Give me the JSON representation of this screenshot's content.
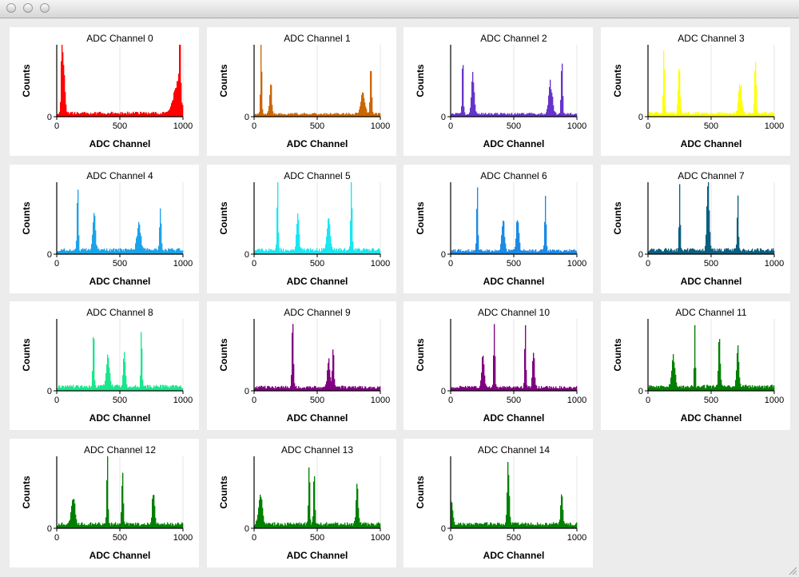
{
  "window": {},
  "axes": {
    "xlabel": "ADC Channel",
    "ylabel": "Counts",
    "xticks": [
      "0",
      "500",
      "1000"
    ],
    "ytick": "0",
    "xlim": [
      0,
      1000
    ]
  },
  "chart_data": [
    {
      "type": "area",
      "title": "ADC Channel 0",
      "color": "#ff0000",
      "xlabel": "ADC Channel",
      "ylabel": "Counts",
      "xlim": [
        0,
        1000
      ],
      "baseline": 0.05,
      "peaks": [
        {
          "x": 40,
          "h": 0.95,
          "w": 6
        },
        {
          "x": 55,
          "h": 0.55,
          "w": 10
        },
        {
          "x": 950,
          "h": 0.4,
          "w": 28
        },
        {
          "x": 975,
          "h": 0.85,
          "w": 6
        }
      ]
    },
    {
      "type": "area",
      "title": "ADC Channel 1",
      "color": "#cc6600",
      "xlabel": "ADC Channel",
      "ylabel": "Counts",
      "xlim": [
        0,
        1000
      ],
      "baseline": 0.04,
      "peaks": [
        {
          "x": 55,
          "h": 0.92,
          "w": 5
        },
        {
          "x": 130,
          "h": 0.45,
          "w": 8
        },
        {
          "x": 860,
          "h": 0.28,
          "w": 16
        },
        {
          "x": 925,
          "h": 0.72,
          "w": 6
        }
      ]
    },
    {
      "type": "area",
      "title": "ADC Channel 2",
      "color": "#6633cc",
      "xlabel": "ADC Channel",
      "ylabel": "Counts",
      "xlim": [
        0,
        1000
      ],
      "baseline": 0.04,
      "peaks": [
        {
          "x": 95,
          "h": 0.78,
          "w": 5
        },
        {
          "x": 175,
          "h": 0.55,
          "w": 10
        },
        {
          "x": 790,
          "h": 0.42,
          "w": 14
        },
        {
          "x": 880,
          "h": 0.75,
          "w": 6
        }
      ]
    },
    {
      "type": "area",
      "title": "ADC Channel 3",
      "color": "#ffff00",
      "xlabel": "ADC Channel",
      "ylabel": "Counts",
      "xlim": [
        0,
        1000
      ],
      "baseline": 0.05,
      "peaks": [
        {
          "x": 125,
          "h": 0.95,
          "w": 5
        },
        {
          "x": 245,
          "h": 0.6,
          "w": 8
        },
        {
          "x": 730,
          "h": 0.4,
          "w": 12
        },
        {
          "x": 850,
          "h": 0.8,
          "w": 6
        }
      ]
    },
    {
      "type": "area",
      "title": "ADC Channel 4",
      "color": "#1aa3e8",
      "xlabel": "ADC Channel",
      "ylabel": "Counts",
      "xlim": [
        0,
        1000
      ],
      "baseline": 0.06,
      "peaks": [
        {
          "x": 165,
          "h": 0.92,
          "w": 5
        },
        {
          "x": 295,
          "h": 0.55,
          "w": 10
        },
        {
          "x": 650,
          "h": 0.4,
          "w": 14
        },
        {
          "x": 820,
          "h": 0.63,
          "w": 6
        }
      ]
    },
    {
      "type": "area",
      "title": "ADC Channel 5",
      "color": "#1ae6f0",
      "xlabel": "ADC Channel",
      "ylabel": "Counts",
      "xlim": [
        0,
        1000
      ],
      "baseline": 0.06,
      "peaks": [
        {
          "x": 185,
          "h": 0.95,
          "w": 5
        },
        {
          "x": 345,
          "h": 0.55,
          "w": 9
        },
        {
          "x": 590,
          "h": 0.45,
          "w": 12
        },
        {
          "x": 770,
          "h": 0.92,
          "w": 6
        }
      ]
    },
    {
      "type": "area",
      "title": "ADC Channel 6",
      "color": "#1a8ae6",
      "xlabel": "ADC Channel",
      "ylabel": "Counts",
      "xlim": [
        0,
        1000
      ],
      "baseline": 0.05,
      "peaks": [
        {
          "x": 210,
          "h": 0.95,
          "w": 5
        },
        {
          "x": 415,
          "h": 0.47,
          "w": 10
        },
        {
          "x": 530,
          "h": 0.45,
          "w": 10
        },
        {
          "x": 750,
          "h": 0.7,
          "w": 6
        }
      ]
    },
    {
      "type": "area",
      "title": "ADC Channel 7",
      "color": "#0a5f80",
      "xlabel": "ADC Channel",
      "ylabel": "Counts",
      "xlim": [
        0,
        1000
      ],
      "baseline": 0.06,
      "peaks": [
        {
          "x": 250,
          "h": 0.83,
          "w": 5
        },
        {
          "x": 475,
          "h": 0.95,
          "w": 9
        },
        {
          "x": 710,
          "h": 0.75,
          "w": 5
        }
      ]
    },
    {
      "type": "area",
      "title": "ADC Channel 8",
      "color": "#1ae68c",
      "xlabel": "ADC Channel",
      "ylabel": "Counts",
      "xlim": [
        0,
        1000
      ],
      "baseline": 0.06,
      "peaks": [
        {
          "x": 290,
          "h": 0.85,
          "w": 5
        },
        {
          "x": 405,
          "h": 0.42,
          "w": 12
        },
        {
          "x": 535,
          "h": 0.52,
          "w": 8
        },
        {
          "x": 670,
          "h": 0.75,
          "w": 5
        }
      ]
    },
    {
      "type": "area",
      "title": "ADC Channel 9",
      "color": "#800080",
      "xlabel": "ADC Channel",
      "ylabel": "Counts",
      "xlim": [
        0,
        1000
      ],
      "baseline": 0.05,
      "peaks": [
        {
          "x": 305,
          "h": 0.92,
          "w": 6
        },
        {
          "x": 590,
          "h": 0.38,
          "w": 10
        },
        {
          "x": 625,
          "h": 0.55,
          "w": 6
        }
      ]
    },
    {
      "type": "area",
      "title": "ADC Channel 10",
      "color": "#800080",
      "xlabel": "ADC Channel",
      "ylabel": "Counts",
      "xlim": [
        0,
        1000
      ],
      "baseline": 0.05,
      "peaks": [
        {
          "x": 255,
          "h": 0.42,
          "w": 10
        },
        {
          "x": 345,
          "h": 0.95,
          "w": 5
        },
        {
          "x": 590,
          "h": 0.8,
          "w": 5
        },
        {
          "x": 655,
          "h": 0.5,
          "w": 8
        }
      ]
    },
    {
      "type": "area",
      "title": "ADC Channel 11",
      "color": "#008000",
      "xlabel": "ADC Channel",
      "ylabel": "Counts",
      "xlim": [
        0,
        1000
      ],
      "baseline": 0.06,
      "peaks": [
        {
          "x": 200,
          "h": 0.42,
          "w": 12
        },
        {
          "x": 370,
          "h": 0.95,
          "w": 4
        },
        {
          "x": 565,
          "h": 0.68,
          "w": 7
        },
        {
          "x": 710,
          "h": 0.6,
          "w": 8
        }
      ]
    },
    {
      "type": "area",
      "title": "ADC Channel 12",
      "color": "#008000",
      "xlabel": "ADC Channel",
      "ylabel": "Counts",
      "xlim": [
        0,
        1000
      ],
      "baseline": 0.06,
      "peaks": [
        {
          "x": 130,
          "h": 0.4,
          "w": 14
        },
        {
          "x": 400,
          "h": 0.95,
          "w": 5
        },
        {
          "x": 520,
          "h": 0.75,
          "w": 6
        },
        {
          "x": 765,
          "h": 0.47,
          "w": 9
        }
      ]
    },
    {
      "type": "area",
      "title": "ADC Channel 13",
      "color": "#008000",
      "xlabel": "ADC Channel",
      "ylabel": "Counts",
      "xlim": [
        0,
        1000
      ],
      "baseline": 0.06,
      "peaks": [
        {
          "x": 50,
          "h": 0.4,
          "w": 14
        },
        {
          "x": 435,
          "h": 0.9,
          "w": 5
        },
        {
          "x": 475,
          "h": 0.85,
          "w": 5
        },
        {
          "x": 815,
          "h": 0.6,
          "w": 8
        }
      ]
    },
    {
      "type": "area",
      "title": "ADC Channel 14",
      "color": "#008000",
      "xlabel": "ADC Channel",
      "ylabel": "Counts",
      "xlim": [
        0,
        1000
      ],
      "baseline": 0.06,
      "peaks": [
        {
          "x": 5,
          "h": 0.3,
          "w": 10
        },
        {
          "x": 455,
          "h": 0.85,
          "w": 8
        },
        {
          "x": 880,
          "h": 0.45,
          "w": 8
        }
      ]
    }
  ]
}
